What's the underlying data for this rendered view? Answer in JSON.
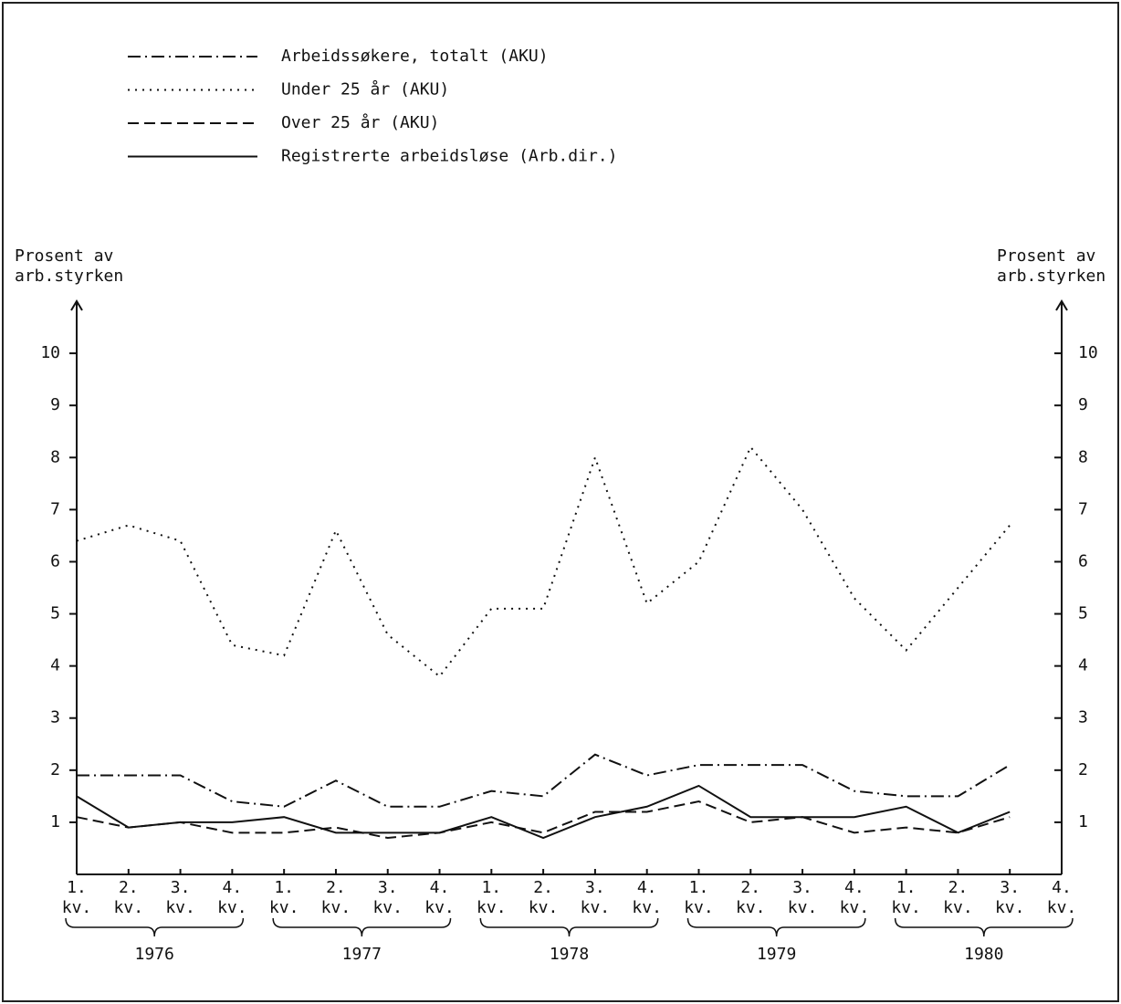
{
  "chart_data": {
    "type": "line",
    "y_label": "Prosent av arb.styrken",
    "y2_label": "Prosent av arb.styrken",
    "categories": [
      "1. kv.",
      "2. kv.",
      "3. kv.",
      "4. kv.",
      "1. kv.",
      "2. kv.",
      "3. kv.",
      "4. kv.",
      "1. kv.",
      "2. kv.",
      "3. kv.",
      "4. kv.",
      "1. kv.",
      "2. kv.",
      "3. kv.",
      "4. kv.",
      "1. kv.",
      "2. kv.",
      "3. kv.",
      "4. kv."
    ],
    "years": [
      "1976",
      "1977",
      "1978",
      "1979",
      "1980"
    ],
    "ylim": [
      0,
      11
    ],
    "yticks": [
      1,
      2,
      3,
      4,
      5,
      6,
      7,
      8,
      9,
      10
    ],
    "y2lim": [
      0,
      11
    ],
    "y2ticks": [
      1,
      2,
      3,
      4,
      5,
      6,
      7,
      8,
      9,
      10
    ],
    "series": [
      {
        "name": "Arbeidssøkere, totalt (AKU)",
        "color": "#111",
        "dash": "dashdot",
        "values": [
          1.9,
          1.9,
          1.9,
          1.4,
          1.3,
          1.8,
          1.3,
          1.3,
          1.6,
          1.5,
          2.3,
          1.9,
          2.1,
          2.1,
          2.1,
          1.6,
          1.5,
          1.5,
          2.1,
          null
        ]
      },
      {
        "name": "Under 25 år (AKU)",
        "color": "#111",
        "dash": "dotted",
        "values": [
          6.4,
          6.7,
          6.4,
          4.4,
          4.2,
          6.6,
          4.6,
          3.8,
          5.1,
          5.1,
          8.0,
          5.2,
          6.0,
          8.2,
          7.0,
          5.3,
          4.3,
          5.5,
          6.7,
          null
        ]
      },
      {
        "name": "Over 25 år (AKU)",
        "color": "#111",
        "dash": "dashed",
        "values": [
          1.1,
          0.9,
          1.0,
          0.8,
          0.8,
          0.9,
          0.7,
          0.8,
          1.0,
          0.8,
          1.2,
          1.2,
          1.4,
          1.0,
          1.1,
          0.8,
          0.9,
          0.8,
          1.1,
          null
        ]
      },
      {
        "name": "Registrerte arbeidsløse (Arb.dir.)",
        "color": "#111",
        "dash": "solid",
        "values": [
          1.5,
          0.9,
          1.0,
          1.0,
          1.1,
          0.8,
          0.8,
          0.8,
          1.1,
          0.7,
          1.1,
          1.3,
          1.7,
          1.1,
          1.1,
          1.1,
          1.3,
          0.8,
          1.2,
          null
        ]
      }
    ]
  }
}
